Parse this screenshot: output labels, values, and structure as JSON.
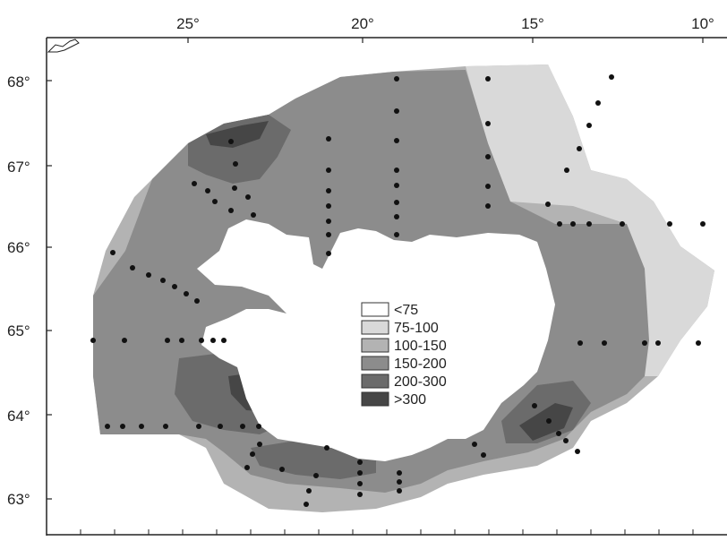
{
  "map": {
    "top_axis_labels": [
      "25°",
      "20°",
      "15°",
      "10°"
    ],
    "left_axis_labels": [
      "68°",
      "67°",
      "66°",
      "65°",
      "64°",
      "63°"
    ],
    "legend": [
      {
        "label": "<75",
        "color": "#ffffff"
      },
      {
        "label": "75-100",
        "color": "#d9d9d9"
      },
      {
        "label": "100-150",
        "color": "#b3b3b3"
      },
      {
        "label": "150-200",
        "color": "#8c8c8c"
      },
      {
        "label": "200-300",
        "color": "#6b6b6b"
      },
      {
        "label": ">300",
        "color": "#464646"
      }
    ],
    "colors": {
      "band_75_100": "#d9d9d9",
      "band_100_150": "#b3b3b3",
      "band_150_200": "#8c8c8c",
      "band_200_300": "#6b6b6b",
      "band_gt_300": "#464646",
      "station_dot": "#111111",
      "frame": "#222222"
    }
  }
}
